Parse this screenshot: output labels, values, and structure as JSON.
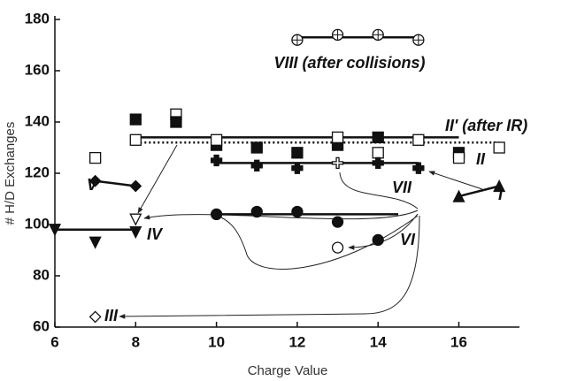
{
  "chart_data": {
    "type": "scatter",
    "xlabel": "Charge Value",
    "ylabel": "# H/D Exchanges",
    "xlim": [
      6,
      17.5
    ],
    "ylim": [
      60,
      180
    ],
    "xticks": [
      6,
      8,
      10,
      12,
      14,
      16
    ],
    "yticks": [
      60,
      80,
      100,
      120,
      140,
      160,
      180
    ],
    "color": "#111111",
    "series": [
      {
        "name": "VIII (after collisions)",
        "marker": "circle-plus",
        "x": [
          12,
          13,
          14,
          15
        ],
        "values": [
          172,
          174,
          174,
          172
        ],
        "filled": [
          false,
          false,
          false,
          false
        ],
        "fit": 173,
        "fit_range": [
          12,
          15
        ]
      },
      {
        "name": "II' (after IR)",
        "marker": "none",
        "x": [
          8,
          17
        ],
        "values": [
          132,
          132
        ],
        "line": "dotted"
      },
      {
        "name": "II",
        "marker": "square",
        "x": [
          7,
          8,
          8,
          9,
          9,
          10,
          10,
          11,
          12,
          13,
          13,
          14,
          14,
          15,
          16,
          16,
          17
        ],
        "values": [
          126,
          141,
          133,
          143,
          140,
          131,
          133,
          130,
          128,
          131,
          134,
          128,
          134,
          133,
          128,
          126,
          130
        ],
        "filled": [
          false,
          true,
          false,
          false,
          true,
          true,
          false,
          true,
          true,
          true,
          false,
          false,
          true,
          false,
          true,
          false,
          false
        ],
        "fit": 134,
        "fit_range": [
          8,
          16
        ]
      },
      {
        "name": "VII",
        "marker": "plus",
        "x": [
          10,
          11,
          12,
          13,
          14,
          15
        ],
        "values": [
          125,
          123,
          122,
          124,
          124,
          122
        ],
        "filled": [
          true,
          true,
          true,
          false,
          true,
          true
        ],
        "fit": 124,
        "fit_range": [
          10,
          15
        ]
      },
      {
        "name": "I",
        "marker": "triangle-up",
        "x": [
          16,
          17
        ],
        "values": [
          111,
          115
        ],
        "filled": [
          true,
          true
        ],
        "line": "solid"
      },
      {
        "name": "V",
        "marker": "diamond",
        "x": [
          7,
          8
        ],
        "values": [
          117,
          115
        ],
        "filled": [
          true,
          true
        ],
        "line": "solid"
      },
      {
        "name": "VI",
        "marker": "circle",
        "x": [
          10,
          11,
          12,
          13,
          14,
          13
        ],
        "values": [
          104,
          105,
          105,
          101,
          94,
          91
        ],
        "filled": [
          true,
          true,
          true,
          true,
          true,
          false
        ],
        "fit": 104,
        "fit_range": [
          10,
          14.5
        ]
      },
      {
        "name": "IV",
        "marker": "triangle-down",
        "x": [
          6,
          7,
          8,
          8
        ],
        "values": [
          98,
          93,
          97,
          102
        ],
        "filled": [
          true,
          true,
          true,
          false
        ],
        "fit": 98,
        "fit_range": [
          6,
          8
        ]
      },
      {
        "name": "III",
        "marker": "diamond",
        "x": [
          7
        ],
        "values": [
          64
        ],
        "filled": [
          false
        ]
      }
    ]
  }
}
